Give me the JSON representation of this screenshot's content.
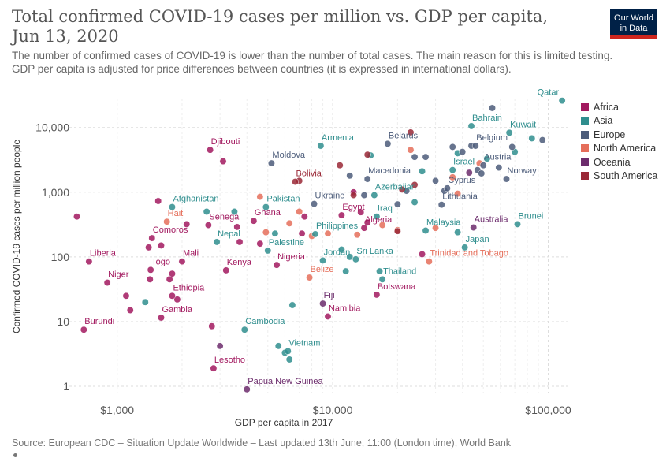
{
  "header": {
    "title": "Total confirmed COVID-19 cases per million vs. GDP per capita, Jun 13, 2020",
    "subtitle_1": "The number of confirmed cases of COVID-19 is lower than the number of total cases. The main reason for this is limited testing.",
    "subtitle_2": "GDP per capita is adjusted for price differences between countries (it is expressed in international dollars).",
    "logo_line_1": "Our World",
    "logo_line_2": "in Data"
  },
  "footer": {
    "source": "Source: European CDC – Situation Update Worldwide – Last updated 13th June, 11:00 (London time), World Bank"
  },
  "colors": {
    "Africa": "#a2195f",
    "Asia": "#2f8e8e",
    "Europe": "#4c5c7a",
    "North America": "#e56e5a",
    "Oceania": "#6c2c6c",
    "South America": "#9a2836"
  },
  "chart_data": {
    "type": "scatter",
    "title": "Total confirmed COVID-19 cases per million vs. GDP per capita, Jun 13, 2020",
    "xlabel": "GDP per capita in 2017",
    "ylabel": "Confirmed COVID-19 cases per million people",
    "xscale": "log",
    "yscale": "log",
    "xlim": [
      600,
      125000
    ],
    "ylim": [
      0.8,
      28000
    ],
    "xticks": [
      1000,
      10000,
      100000
    ],
    "xtick_labels": [
      "$1,000",
      "$10,000",
      "$100,000"
    ],
    "yticks": [
      1,
      10,
      100,
      1000,
      10000
    ],
    "ytick_labels": [
      "1",
      "10",
      "100",
      "1,000",
      "10,000"
    ],
    "grid": true,
    "legend_position": "right",
    "legend": [
      "Africa",
      "Asia",
      "Europe",
      "North America",
      "Oceania",
      "South America"
    ],
    "labeled_points": [
      {
        "name": "Qatar",
        "region": "Asia",
        "x": 116000,
        "y": 26000
      },
      {
        "name": "Bahrain",
        "region": "Asia",
        "x": 44000,
        "y": 10500
      },
      {
        "name": "Kuwait",
        "region": "Asia",
        "x": 66000,
        "y": 8300
      },
      {
        "name": "Djibouti",
        "region": "Africa",
        "x": 2700,
        "y": 4500
      },
      {
        "name": "Armenia",
        "region": "Asia",
        "x": 8800,
        "y": 5200
      },
      {
        "name": "Belarus",
        "region": "Europe",
        "x": 18000,
        "y": 5600
      },
      {
        "name": "Belgium",
        "region": "Europe",
        "x": 46000,
        "y": 5200
      },
      {
        "name": "Moldova",
        "region": "Europe",
        "x": 5200,
        "y": 2800
      },
      {
        "name": "Israel",
        "region": "Asia",
        "x": 36000,
        "y": 2200
      },
      {
        "name": "Austria",
        "region": "Europe",
        "x": 50000,
        "y": 2600
      },
      {
        "name": "Norway",
        "region": "Europe",
        "x": 64000,
        "y": 1600
      },
      {
        "name": "Bolivia",
        "region": "South America",
        "x": 6700,
        "y": 1450
      },
      {
        "name": "Macedonia",
        "region": "Europe",
        "x": 14500,
        "y": 1600
      },
      {
        "name": "Cyprus",
        "region": "Europe",
        "x": 34000,
        "y": 1150
      },
      {
        "name": "Azerbaijan",
        "region": "Asia",
        "x": 15600,
        "y": 900
      },
      {
        "name": "Afghanistan",
        "region": "Asia",
        "x": 1800,
        "y": 590
      },
      {
        "name": "Pakistan",
        "region": "Asia",
        "x": 4900,
        "y": 590
      },
      {
        "name": "Ukraine",
        "region": "Europe",
        "x": 8200,
        "y": 660
      },
      {
        "name": "Lithuania",
        "region": "Europe",
        "x": 32000,
        "y": 640
      },
      {
        "name": "Haiti",
        "region": "North America",
        "x": 1700,
        "y": 350
      },
      {
        "name": "Senegal",
        "region": "Africa",
        "x": 2650,
        "y": 310
      },
      {
        "name": "Ghana",
        "region": "Africa",
        "x": 4300,
        "y": 360
      },
      {
        "name": "Egypt",
        "region": "Africa",
        "x": 11000,
        "y": 440
      },
      {
        "name": "Iraq",
        "region": "Asia",
        "x": 16000,
        "y": 420
      },
      {
        "name": "Brunei",
        "region": "Asia",
        "x": 72000,
        "y": 320
      },
      {
        "name": "Australia",
        "region": "Oceania",
        "x": 45000,
        "y": 285
      },
      {
        "name": "Malaysia",
        "region": "Asia",
        "x": 27000,
        "y": 255
      },
      {
        "name": "Algeria",
        "region": "Africa",
        "x": 14000,
        "y": 280
      },
      {
        "name": "Philippines",
        "region": "Asia",
        "x": 8300,
        "y": 225
      },
      {
        "name": "Comoros",
        "region": "Africa",
        "x": 1450,
        "y": 195
      },
      {
        "name": "Nepal",
        "region": "Asia",
        "x": 2900,
        "y": 170
      },
      {
        "name": "Palestine",
        "region": "Asia",
        "x": 5000,
        "y": 125
      },
      {
        "name": "Japan",
        "region": "Asia",
        "x": 41000,
        "y": 140
      },
      {
        "name": "Jordan",
        "region": "Asia",
        "x": 9000,
        "y": 88
      },
      {
        "name": "Sri Lanka",
        "region": "Asia",
        "x": 12800,
        "y": 92
      },
      {
        "name": "Trinidad and Tobago",
        "region": "North America",
        "x": 28000,
        "y": 85
      },
      {
        "name": "Liberia",
        "region": "Africa",
        "x": 740,
        "y": 85
      },
      {
        "name": "Mali",
        "region": "Africa",
        "x": 2000,
        "y": 85
      },
      {
        "name": "Togo",
        "region": "Africa",
        "x": 1430,
        "y": 63
      },
      {
        "name": "Kenya",
        "region": "Africa",
        "x": 3200,
        "y": 62
      },
      {
        "name": "Nigeria",
        "region": "Africa",
        "x": 5500,
        "y": 75
      },
      {
        "name": "Belize",
        "region": "North America",
        "x": 7800,
        "y": 48
      },
      {
        "name": "Thailand",
        "region": "Asia",
        "x": 17000,
        "y": 45
      },
      {
        "name": "Niger",
        "region": "Africa",
        "x": 900,
        "y": 40
      },
      {
        "name": "Ethiopia",
        "region": "Africa",
        "x": 1800,
        "y": 25
      },
      {
        "name": "Botswana",
        "region": "Africa",
        "x": 16000,
        "y": 26
      },
      {
        "name": "Fiji",
        "region": "Oceania",
        "x": 9000,
        "y": 19
      },
      {
        "name": "Gambia",
        "region": "Africa",
        "x": 1600,
        "y": 11.5
      },
      {
        "name": "Namibia",
        "region": "Africa",
        "x": 9500,
        "y": 12
      },
      {
        "name": "Burundi",
        "region": "Africa",
        "x": 700,
        "y": 7.5
      },
      {
        "name": "Cambodia",
        "region": "Asia",
        "x": 3900,
        "y": 7.5
      },
      {
        "name": "Vietnam",
        "region": "Asia",
        "x": 6200,
        "y": 3.5
      },
      {
        "name": "Lesotho",
        "region": "Africa",
        "x": 2800,
        "y": 1.9
      },
      {
        "name": "Papua New Guinea",
        "region": "Oceania",
        "x": 4000,
        "y": 0.9
      }
    ],
    "points": [
      {
        "region": "Africa",
        "x": 650,
        "y": 420
      },
      {
        "region": "Africa",
        "x": 1100,
        "y": 25
      },
      {
        "region": "Africa",
        "x": 1150,
        "y": 15
      },
      {
        "region": "Africa",
        "x": 1400,
        "y": 140
      },
      {
        "region": "Africa",
        "x": 1420,
        "y": 45
      },
      {
        "region": "Africa",
        "x": 1550,
        "y": 730
      },
      {
        "region": "Africa",
        "x": 1600,
        "y": 150
      },
      {
        "region": "Africa",
        "x": 1750,
        "y": 45
      },
      {
        "region": "Africa",
        "x": 1800,
        "y": 55
      },
      {
        "region": "Africa",
        "x": 1900,
        "y": 22
      },
      {
        "region": "Africa",
        "x": 2100,
        "y": 320
      },
      {
        "region": "Africa",
        "x": 2750,
        "y": 8.5
      },
      {
        "region": "Africa",
        "x": 3100,
        "y": 3000
      },
      {
        "region": "Africa",
        "x": 3600,
        "y": 290
      },
      {
        "region": "Africa",
        "x": 3700,
        "y": 170
      },
      {
        "region": "Africa",
        "x": 4600,
        "y": 160
      },
      {
        "region": "Africa",
        "x": 7200,
        "y": 230
      },
      {
        "region": "Africa",
        "x": 7400,
        "y": 420
      },
      {
        "region": "Africa",
        "x": 12500,
        "y": 1000
      },
      {
        "region": "Africa",
        "x": 13500,
        "y": 490
      },
      {
        "region": "Africa",
        "x": 14500,
        "y": 340
      },
      {
        "region": "Africa",
        "x": 26000,
        "y": 110
      },
      {
        "region": "Asia",
        "x": 1350,
        "y": 20
      },
      {
        "region": "Asia",
        "x": 2600,
        "y": 500
      },
      {
        "region": "Asia",
        "x": 3500,
        "y": 500
      },
      {
        "region": "Asia",
        "x": 5400,
        "y": 230
      },
      {
        "region": "Asia",
        "x": 5600,
        "y": 4.2
      },
      {
        "region": "Asia",
        "x": 6000,
        "y": 3.3
      },
      {
        "region": "Asia",
        "x": 6300,
        "y": 2.6
      },
      {
        "region": "Asia",
        "x": 6500,
        "y": 18
      },
      {
        "region": "Asia",
        "x": 11000,
        "y": 130
      },
      {
        "region": "Asia",
        "x": 11500,
        "y": 60
      },
      {
        "region": "Asia",
        "x": 12000,
        "y": 100
      },
      {
        "region": "Asia",
        "x": 16500,
        "y": 60
      },
      {
        "region": "Asia",
        "x": 15000,
        "y": 3700
      },
      {
        "region": "Asia",
        "x": 24000,
        "y": 700
      },
      {
        "region": "Asia",
        "x": 26000,
        "y": 2100
      },
      {
        "region": "Asia",
        "x": 38000,
        "y": 4000
      },
      {
        "region": "Asia",
        "x": 52000,
        "y": 3300
      },
      {
        "region": "Asia",
        "x": 70000,
        "y": 4200
      },
      {
        "region": "Asia",
        "x": 84000,
        "y": 6800
      },
      {
        "region": "Asia",
        "x": 38000,
        "y": 240
      },
      {
        "region": "Europe",
        "x": 12000,
        "y": 1800
      },
      {
        "region": "Europe",
        "x": 14000,
        "y": 900
      },
      {
        "region": "Europe",
        "x": 20000,
        "y": 650
      },
      {
        "region": "Europe",
        "x": 22000,
        "y": 1050
      },
      {
        "region": "Europe",
        "x": 24000,
        "y": 3500
      },
      {
        "region": "Europe",
        "x": 27000,
        "y": 3500
      },
      {
        "region": "Europe",
        "x": 30000,
        "y": 1500
      },
      {
        "region": "Europe",
        "x": 33000,
        "y": 1050
      },
      {
        "region": "Europe",
        "x": 36000,
        "y": 5000
      },
      {
        "region": "Europe",
        "x": 40000,
        "y": 4200
      },
      {
        "region": "Europe",
        "x": 44000,
        "y": 5200
      },
      {
        "region": "Europe",
        "x": 47000,
        "y": 2200
      },
      {
        "region": "Europe",
        "x": 49000,
        "y": 1950
      },
      {
        "region": "Europe",
        "x": 55000,
        "y": 20000
      },
      {
        "region": "Europe",
        "x": 59000,
        "y": 2400
      },
      {
        "region": "Europe",
        "x": 68000,
        "y": 5000
      },
      {
        "region": "Europe",
        "x": 94000,
        "y": 6400
      },
      {
        "region": "North America",
        "x": 4600,
        "y": 850
      },
      {
        "region": "North America",
        "x": 4900,
        "y": 240
      },
      {
        "region": "North America",
        "x": 6300,
        "y": 330
      },
      {
        "region": "North America",
        "x": 7000,
        "y": 500
      },
      {
        "region": "North America",
        "x": 8000,
        "y": 210
      },
      {
        "region": "North America",
        "x": 9500,
        "y": 230
      },
      {
        "region": "North America",
        "x": 13000,
        "y": 220
      },
      {
        "region": "North America",
        "x": 17000,
        "y": 310
      },
      {
        "region": "North America",
        "x": 20000,
        "y": 260
      },
      {
        "region": "North America",
        "x": 23000,
        "y": 4500
      },
      {
        "region": "North America",
        "x": 36000,
        "y": 1700
      },
      {
        "region": "North America",
        "x": 38000,
        "y": 950
      },
      {
        "region": "North America",
        "x": 48000,
        "y": 2800
      },
      {
        "region": "North America",
        "x": 30000,
        "y": 280
      },
      {
        "region": "Oceania",
        "x": 3000,
        "y": 4.2
      },
      {
        "region": "Oceania",
        "x": 43000,
        "y": 2000
      },
      {
        "region": "South America",
        "x": 7000,
        "y": 1500
      },
      {
        "region": "South America",
        "x": 10800,
        "y": 2600
      },
      {
        "region": "South America",
        "x": 12500,
        "y": 900
      },
      {
        "region": "South America",
        "x": 14500,
        "y": 3800
      },
      {
        "region": "South America",
        "x": 20000,
        "y": 250
      },
      {
        "region": "South America",
        "x": 21000,
        "y": 1100
      },
      {
        "region": "South America",
        "x": 23000,
        "y": 8400
      },
      {
        "region": "South America",
        "x": 24000,
        "y": 1300
      }
    ]
  }
}
